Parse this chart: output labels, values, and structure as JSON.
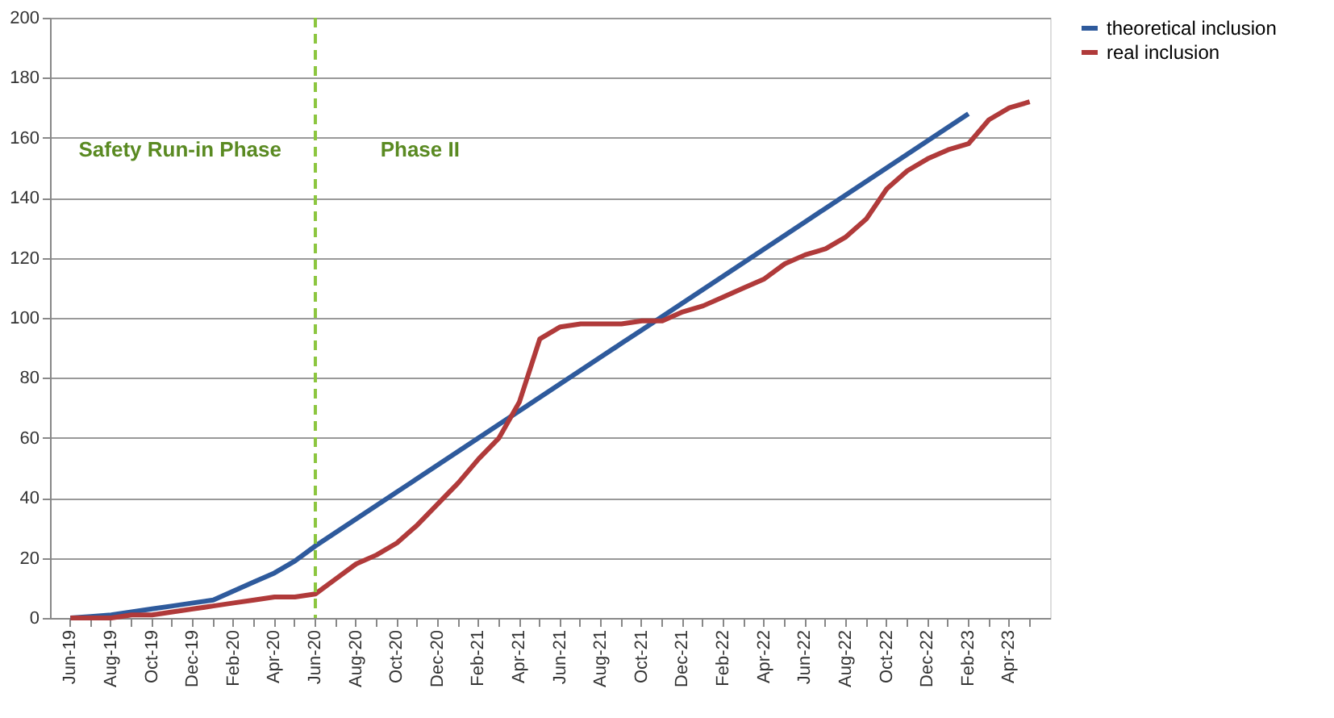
{
  "chart_data": {
    "type": "line",
    "categories": [
      "Jun-19",
      null,
      "Aug-19",
      null,
      "Oct-19",
      null,
      "Dec-19",
      null,
      "Feb-20",
      null,
      "Apr-20",
      null,
      "Jun-20",
      null,
      "Aug-20",
      null,
      "Oct-20",
      null,
      "Dec-20",
      null,
      "Feb-21",
      null,
      "Apr-21",
      null,
      "Jun-21",
      null,
      "Aug-21",
      null,
      "Oct-21",
      null,
      "Dec-21",
      null,
      "Feb-22",
      null,
      "Apr-22",
      null,
      "Jun-22",
      null,
      "Aug-22",
      null,
      "Oct-22",
      null,
      "Dec-22",
      null,
      "Feb-23",
      null,
      "Apr-23",
      null
    ],
    "series": [
      {
        "name": "theoretical inclusion",
        "color": "#2e5a9c",
        "values": [
          0,
          0.5,
          1,
          2,
          3,
          4,
          5,
          6,
          9,
          12,
          15,
          19,
          24,
          28.5,
          33,
          37.5,
          42,
          46.5,
          51,
          55.5,
          60,
          64.5,
          69,
          73.5,
          78,
          82.5,
          87,
          91.5,
          96,
          100.5,
          105,
          109.5,
          114,
          118.5,
          123,
          127.5,
          132,
          136.5,
          141,
          145.5,
          150,
          154.5,
          159,
          163.5,
          168,
          null,
          null,
          null
        ]
      },
      {
        "name": "real inclusion",
        "color": "#b03a3a",
        "values": [
          0,
          0,
          0,
          1,
          1,
          2,
          3,
          4,
          5,
          6,
          7,
          7,
          8,
          13,
          18,
          21,
          25,
          31,
          38,
          45,
          53,
          60,
          72,
          93,
          97,
          98,
          98,
          98,
          99,
          99,
          102,
          104,
          107,
          110,
          113,
          118,
          121,
          123,
          127,
          133,
          143,
          149,
          153,
          156,
          158,
          166,
          170,
          172
        ]
      }
    ],
    "ylim": [
      0,
      200
    ],
    "yticks": [
      0,
      20,
      40,
      60,
      80,
      100,
      120,
      140,
      160,
      180,
      200
    ],
    "grid": "y",
    "legend": "right",
    "line_style": "solid",
    "marker": "none",
    "ref_lines": [
      {
        "axis": "x",
        "value": "Jun-20",
        "color": "#8cc63f",
        "line_style": "dashed"
      }
    ],
    "annotations": [
      "Safety Run-in Phase",
      "Phase II"
    ]
  }
}
